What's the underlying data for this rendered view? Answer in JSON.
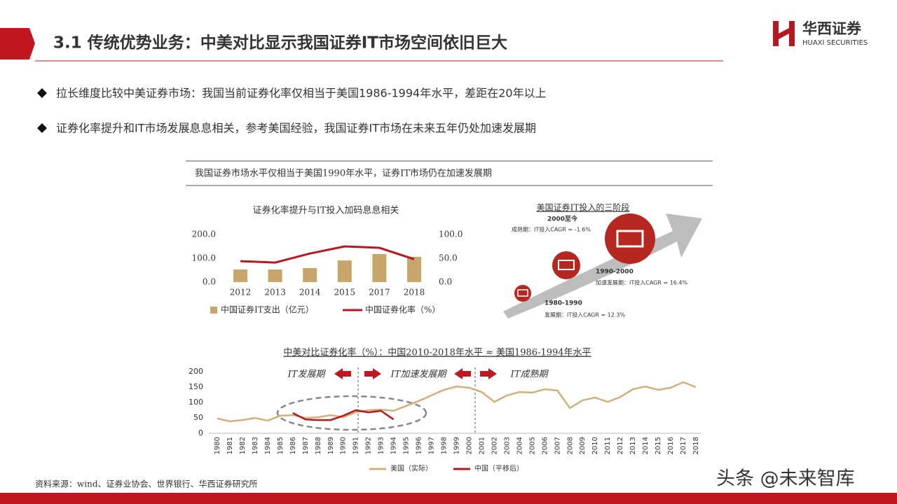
{
  "header": {
    "title": "3.1 传统优势业务：中美对比显示我国证券IT市场空间依旧巨大",
    "logo_cn": "华西证券",
    "logo_en": "HUAXI SECURITIES"
  },
  "bullets": [
    "拉长维度比较中美证券市场：我国当前证券化率仅相当于美国1986-1994年水平，差距在20年以上",
    "证券化率提升和IT市场发展息息相关，参考美国经验，我国证券IT市场在未来五年仍处加速发展期"
  ],
  "section_title": "我国证券市场水平仅相当于美国1990年水平，证券IT市场仍在加速发展期",
  "diagram": {
    "title": "美国证券IT投入的三阶段",
    "stages": [
      {
        "period": "1980-1990",
        "label": "发展期：IT投入CAGR = 12.3%"
      },
      {
        "period": "1990-2000",
        "label": "加速发展期：IT投入CAGR = 16.4%"
      },
      {
        "period": "2000至今",
        "label": "成熟期：IT投入CAGR = -1.6%"
      }
    ]
  },
  "chart_data": [
    {
      "type": "combo",
      "title": "证券化率提升与IT投入加码息息相关",
      "categories": [
        "2012",
        "2013",
        "2014",
        "2015",
        "2017",
        "2018"
      ],
      "series": [
        {
          "name": "中国证券IT支出（亿元）",
          "color": "#c8a56a",
          "type": "bar",
          "values": [
            53,
            53,
            59,
            91,
            118,
            106
          ]
        },
        {
          "name": "中国证券化率（%）",
          "color": "#b5181e",
          "type": "line",
          "axis": "y2",
          "values": [
            44,
            41,
            60,
            75,
            72,
            48
          ]
        }
      ],
      "ylim": [
        0,
        200
      ],
      "yticks": [
        {
          "value": 0,
          "label": "0.0"
        },
        {
          "value": 100,
          "label": "100.0"
        },
        {
          "value": 200,
          "label": "200.0"
        }
      ],
      "y2lim": [
        0,
        100
      ],
      "y2ticks": [
        {
          "value": 0,
          "label": "0.0"
        },
        {
          "value": 50,
          "label": "50.0"
        },
        {
          "value": 100,
          "label": "100.0"
        }
      ]
    },
    {
      "type": "line",
      "title": "中美对比证券化率（%）：中国2010-2018年水平 ≈ 美国1986-1994年水平",
      "annotations": [
        "IT发展期",
        "IT加速发展期",
        "IT成熟期"
      ],
      "categories": [
        "1980",
        "1981",
        "1982",
        "1983",
        "1984",
        "1985",
        "1986",
        "1987",
        "1988",
        "1989",
        "1990",
        "1991",
        "1992",
        "1993",
        "1994",
        "1995",
        "1996",
        "1997",
        "1998",
        "1999",
        "2000",
        "2001",
        "2002",
        "2003",
        "2004",
        "2005",
        "2006",
        "2007",
        "2008",
        "2009",
        "2010",
        "2011",
        "2012",
        "2013",
        "2014",
        "2015",
        "2016",
        "2017",
        "2018"
      ],
      "series": [
        {
          "name": "美国（实际）",
          "color": "#d2b07a",
          "values": [
            48,
            39,
            43,
            50,
            41,
            57,
            59,
            50,
            52,
            59,
            52,
            68,
            75,
            77,
            73,
            89,
            105,
            123,
            141,
            152,
            148,
            134,
            102,
            123,
            134,
            132,
            143,
            139,
            82,
            107,
            116,
            102,
            118,
            143,
            152,
            141,
            148,
            166,
            150
          ]
        },
        {
          "name": "中国（平移后）",
          "color": "#b5181e",
          "values": [
            null,
            null,
            null,
            null,
            null,
            null,
            66,
            45,
            43,
            43,
            57,
            75,
            68,
            73,
            45,
            null,
            null,
            null,
            null,
            null,
            null,
            null,
            null,
            null,
            null,
            null,
            null,
            null,
            null,
            null,
            null,
            null,
            null,
            null,
            null,
            null,
            null,
            null,
            null
          ]
        }
      ],
      "ylim": [
        0,
        200
      ],
      "yticks": [
        0,
        50,
        100,
        150,
        200
      ]
    }
  ],
  "source": "资料来源：wind、证券业协会、世界银行、华西证券研究所",
  "watermark": "头条 @未来智库"
}
